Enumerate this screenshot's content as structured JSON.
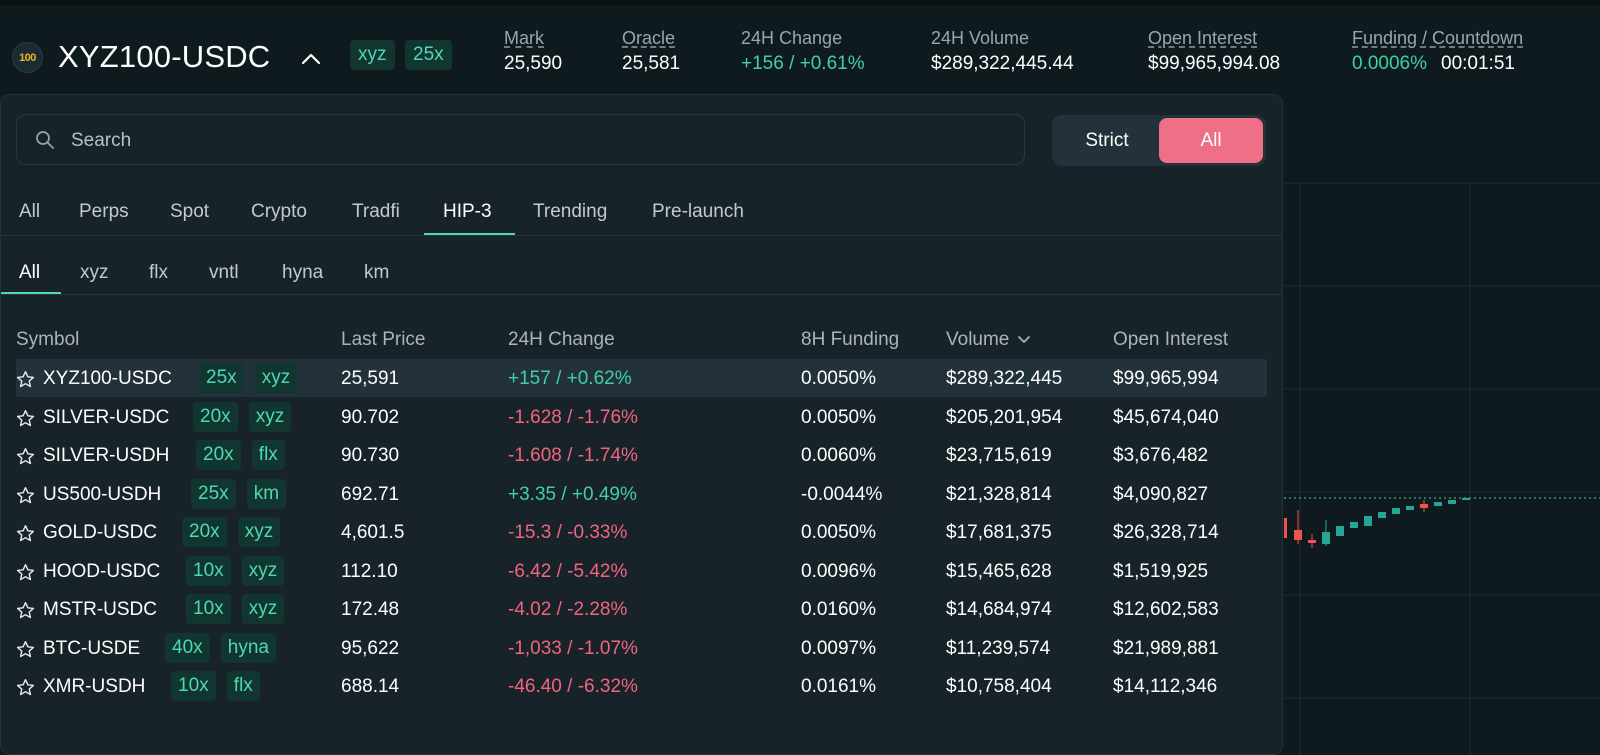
{
  "header": {
    "coin_label": "100",
    "pair": "XYZ100-USDC",
    "tags": [
      "xyz",
      "25x"
    ],
    "stats": [
      {
        "label": "Mark",
        "value": "25,590"
      },
      {
        "label": "Oracle",
        "value": "25,581"
      },
      {
        "label": "24H Change",
        "value": "+156 / +0.61%"
      },
      {
        "label": "24H Volume",
        "value": "$289,322,445.44"
      },
      {
        "label": "Open Interest",
        "value": "$99,965,994.08"
      },
      {
        "label": "Funding / Countdown",
        "value": "0.0006%",
        "countdown": "00:01:51"
      }
    ]
  },
  "search": {
    "placeholder": "Search",
    "value": ""
  },
  "toggle": {
    "strict": "Strict",
    "all": "All",
    "selected": "All"
  },
  "category_tabs": [
    "All",
    "Perps",
    "Spot",
    "Crypto",
    "Tradfi",
    "HIP-3",
    "Trending",
    "Pre-launch"
  ],
  "active_category": "HIP-3",
  "dex_tabs": [
    "All",
    "xyz",
    "flx",
    "vntl",
    "hyna",
    "km"
  ],
  "active_dex": "All",
  "table": {
    "columns": [
      "Symbol",
      "Last Price",
      "24H Change",
      "8H Funding",
      "Volume",
      "Open Interest"
    ],
    "sorted_by": "Volume",
    "rows": [
      {
        "symbol": "XYZ100-USDC",
        "leverage": "25x",
        "dex": "xyz",
        "price": "25,591",
        "change": "+157 / +0.62%",
        "dir": "up",
        "funding": "0.0050%",
        "volume": "$289,322,445",
        "oi": "$99,965,994"
      },
      {
        "symbol": "SILVER-USDC",
        "leverage": "20x",
        "dex": "xyz",
        "price": "90.702",
        "change": "-1.628 / -1.76%",
        "dir": "down",
        "funding": "0.0050%",
        "volume": "$205,201,954",
        "oi": "$45,674,040"
      },
      {
        "symbol": "SILVER-USDH",
        "leverage": "20x",
        "dex": "flx",
        "price": "90.730",
        "change": "-1.608 / -1.74%",
        "dir": "down",
        "funding": "0.0060%",
        "volume": "$23,715,619",
        "oi": "$3,676,482"
      },
      {
        "symbol": "US500-USDH",
        "leverage": "25x",
        "dex": "km",
        "price": "692.71",
        "change": "+3.35 / +0.49%",
        "dir": "up",
        "funding": "-0.0044%",
        "volume": "$21,328,814",
        "oi": "$4,090,827"
      },
      {
        "symbol": "GOLD-USDC",
        "leverage": "20x",
        "dex": "xyz",
        "price": "4,601.5",
        "change": "-15.3 / -0.33%",
        "dir": "down",
        "funding": "0.0050%",
        "volume": "$17,681,375",
        "oi": "$26,328,714"
      },
      {
        "symbol": "HOOD-USDC",
        "leverage": "10x",
        "dex": "xyz",
        "price": "112.10",
        "change": "-6.42 / -5.42%",
        "dir": "down",
        "funding": "0.0096%",
        "volume": "$15,465,628",
        "oi": "$1,519,925"
      },
      {
        "symbol": "MSTR-USDC",
        "leverage": "10x",
        "dex": "xyz",
        "price": "172.48",
        "change": "-4.02 / -2.28%",
        "dir": "down",
        "funding": "0.0160%",
        "volume": "$14,684,974",
        "oi": "$12,602,583"
      },
      {
        "symbol": "BTC-USDE",
        "leverage": "40x",
        "dex": "hyna",
        "price": "95,622",
        "change": "-1,033 / -1.07%",
        "dir": "down",
        "funding": "0.0097%",
        "volume": "$11,239,574",
        "oi": "$21,989,881"
      },
      {
        "symbol": "XMR-USDH",
        "leverage": "10x",
        "dex": "flx",
        "price": "688.14",
        "change": "-46.40 / -6.32%",
        "dir": "down",
        "funding": "0.0161%",
        "volume": "$10,758,404",
        "oi": "$14,112,346"
      }
    ]
  },
  "colors": {
    "up": "#3fd0a4",
    "down": "#f0657f",
    "accent": "#4fd8b6",
    "toggle_active": "#ef6f87"
  }
}
